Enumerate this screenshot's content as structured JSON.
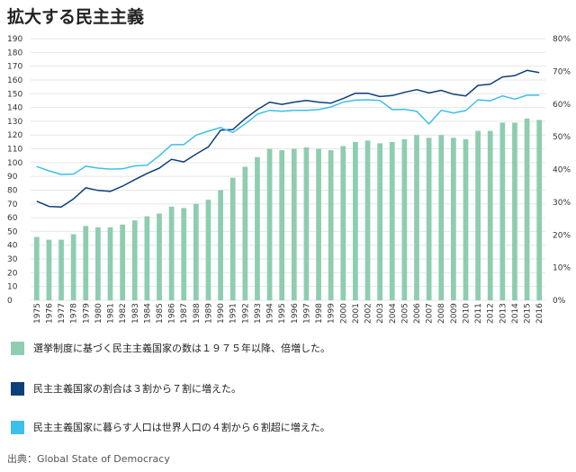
{
  "chart_data": {
    "type": "bar+line",
    "title": "拡大する民主主義",
    "categories": [
      "1975",
      "1976",
      "1977",
      "1978",
      "1979",
      "1980",
      "1981",
      "1982",
      "1983",
      "1984",
      "1985",
      "1986",
      "1987",
      "1988",
      "1989",
      "1990",
      "1991",
      "1992",
      "1993",
      "1994",
      "1995",
      "1996",
      "1997",
      "1998",
      "1999",
      "2000",
      "2001",
      "2002",
      "2003",
      "2004",
      "2005",
      "2006",
      "2007",
      "2008",
      "2009",
      "2010",
      "2011",
      "2012",
      "2013",
      "2014",
      "2015",
      "2016"
    ],
    "left_axis": {
      "ylim": [
        0,
        190
      ],
      "ticks": [
        0,
        10,
        20,
        30,
        40,
        50,
        60,
        70,
        80,
        90,
        100,
        110,
        120,
        130,
        140,
        150,
        160,
        170,
        180,
        190
      ]
    },
    "right_axis": {
      "ylim": [
        0,
        80
      ],
      "unit": "%",
      "ticks": [
        0,
        10,
        20,
        30,
        40,
        50,
        60,
        70,
        80
      ]
    },
    "series": [
      {
        "name": "選挙制度に基づく民主主義国家の数は１９７５年以降、倍増した。",
        "type": "bar",
        "axis": "left",
        "color": "#8ecdb0",
        "values": [
          46,
          44,
          44,
          48,
          54,
          53,
          53,
          55,
          58,
          61,
          63,
          68,
          67,
          70,
          73,
          80,
          89,
          97,
          104,
          110,
          109,
          110,
          111,
          110,
          109,
          112,
          115,
          116,
          114,
          115,
          117,
          120,
          118,
          120,
          118,
          117,
          123,
          123,
          129,
          129,
          132,
          131
        ]
      },
      {
        "name": "民主主義国家の割合は３割から７割に増えた。",
        "type": "line",
        "axis": "right",
        "color": "#0d3f78",
        "values": [
          30.3,
          28.7,
          28.5,
          31,
          34.4,
          33.6,
          33.3,
          34.9,
          36.9,
          38.8,
          40.4,
          43.1,
          42.3,
          44.7,
          46.9,
          52,
          52.2,
          55.5,
          58.3,
          60.6,
          59.9,
          60.6,
          61.1,
          60.6,
          60.3,
          61.7,
          63.3,
          63.3,
          62.3,
          62.6,
          63.6,
          64.4,
          63.4,
          64.2,
          63,
          62.5,
          65.7,
          66.1,
          68.3,
          68.7,
          70.3,
          69.6
        ]
      },
      {
        "name": "民主主義国家に暮らす人口は世界人口の４割から６割超に増えた。",
        "type": "line",
        "axis": "right",
        "color": "#3cbfea",
        "values": [
          40.9,
          39.6,
          38.5,
          38.6,
          41,
          40.4,
          40.1,
          40.2,
          41.1,
          41.3,
          44.2,
          47.6,
          47.6,
          50.5,
          51.7,
          52.8,
          51.3,
          53.9,
          56.9,
          58.1,
          57.8,
          58.1,
          58.1,
          58.3,
          59.1,
          60.6,
          61.2,
          61.3,
          61.1,
          58.3,
          58.4,
          57.8,
          53.9,
          58.1,
          57.3,
          58,
          61.3,
          61,
          62.5,
          61.5,
          62.7,
          62.7
        ]
      }
    ]
  },
  "legend": [
    {
      "label": "選挙制度に基づく民主主義国家の数は１９７５年以降、倍増した。",
      "color": "#8ecdb0"
    },
    {
      "label": "民主主義国家の割合は３割から７割に増えた。",
      "color": "#0d3f78"
    },
    {
      "label": "民主主義国家に暮らす人口は世界人口の４割から６割超に増えた。",
      "color": "#3cbfea"
    }
  ],
  "source": "出典：Global State of Democracy"
}
